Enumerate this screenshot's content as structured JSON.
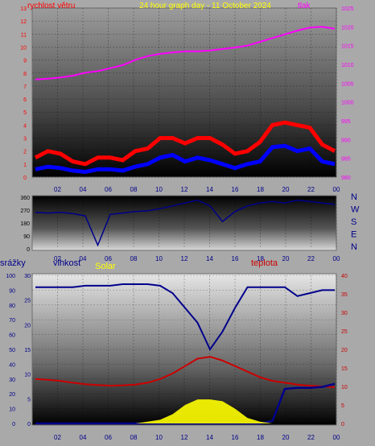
{
  "chart_data": [
    {
      "type": "line",
      "title": "24 hour graph day - 11 October 2024",
      "left_axis_label": "rychlost větru",
      "right_axis_label": "tlak",
      "x_ticks": [
        "02",
        "04",
        "06",
        "08",
        "10",
        "12",
        "14",
        "16",
        "18",
        "20",
        "22",
        "00"
      ],
      "wind_speed_ticks": [
        "0",
        "1",
        "2",
        "3",
        "4",
        "5",
        "6",
        "7",
        "8",
        "9",
        "10",
        "11",
        "12",
        "13"
      ],
      "pressure_ticks": [
        "980",
        "985",
        "990",
        "995",
        "1000",
        "1005",
        "1010",
        "1015",
        "1020",
        "1025"
      ],
      "series": [
        {
          "name": "tlak",
          "axis": "right",
          "color": "#ff00ff",
          "values": [
            1006,
            1006.2,
            1006.5,
            1007,
            1007.8,
            1008.2,
            1009,
            1009.8,
            1011.2,
            1012.2,
            1012.8,
            1013.2,
            1013.5,
            1013.5,
            1013.7,
            1014.1,
            1014.5,
            1015,
            1016,
            1017,
            1018,
            1019,
            1019.8,
            1020,
            1019.5
          ]
        },
        {
          "axis": "left",
          "color": "#ff0000",
          "values": [
            1.5,
            2,
            1.8,
            1.2,
            1,
            1.5,
            1.5,
            1.3,
            2,
            2.2,
            3,
            3,
            2.6,
            3,
            3,
            2.5,
            1.8,
            2,
            2.7,
            4,
            4.2,
            4,
            3.8,
            2.5,
            2
          ]
        },
        {
          "axis": "left",
          "color": "#0000ff",
          "values": [
            0.6,
            0.8,
            0.7,
            0.5,
            0.4,
            0.6,
            0.6,
            0.5,
            0.8,
            1,
            1.5,
            1.7,
            1.2,
            1.5,
            1.3,
            1,
            0.7,
            1,
            1.2,
            2.3,
            2.4,
            2,
            2.2,
            1.2,
            1
          ]
        }
      ]
    },
    {
      "type": "line",
      "y_ticks": [
        "360",
        "270",
        "180",
        "90",
        "0"
      ],
      "x_ticks": [
        "02",
        "04",
        "06",
        "08",
        "10",
        "12",
        "14",
        "16",
        "18",
        "20",
        "22",
        "00"
      ],
      "direction_labels": [
        "N",
        "W",
        "S",
        "E",
        "N"
      ],
      "series": [
        {
          "color": "#00008b",
          "values": [
            255,
            250,
            255,
            245,
            230,
            25,
            240,
            250,
            260,
            265,
            280,
            300,
            320,
            340,
            300,
            190,
            260,
            300,
            320,
            330,
            320,
            340,
            330,
            320,
            310
          ]
        }
      ]
    },
    {
      "type": "line",
      "labels": {
        "rain": "srážky",
        "humidity": "vlhkost",
        "solar": "Solar",
        "temperature": "teplota"
      },
      "x_ticks": [
        "02",
        "04",
        "06",
        "08",
        "10",
        "12",
        "14",
        "16",
        "18",
        "20",
        "22",
        "00"
      ],
      "rain_ticks": [
        "0",
        "10",
        "20",
        "30",
        "40",
        "50",
        "60",
        "70",
        "80",
        "90",
        "100"
      ],
      "humidity_ticks": [
        "0",
        "5",
        "10",
        "15",
        "20",
        "25",
        "30"
      ],
      "temperature_ticks": [
        "0",
        "5",
        "10",
        "15",
        "20",
        "25",
        "30",
        "35",
        "40"
      ],
      "series": [
        {
          "name": "vlhkost",
          "axis": "rain",
          "color": "#00008b",
          "values": [
            92,
            92,
            92,
            92,
            93,
            93,
            93,
            94,
            94,
            94,
            93,
            88,
            78,
            68,
            50,
            62,
            78,
            92,
            92,
            92,
            92,
            86,
            88,
            90,
            90
          ]
        },
        {
          "name": "teplota",
          "axis": "temperature",
          "color": "#cc0000",
          "values": [
            12,
            11.8,
            11.5,
            11,
            10.6,
            10.4,
            10.2,
            10.3,
            10.5,
            11,
            12,
            13.5,
            15.5,
            17.5,
            18,
            17,
            15.5,
            14,
            12.5,
            11.5,
            11,
            10.5,
            10.2,
            10,
            9.8
          ]
        },
        {
          "name": "srážky",
          "axis": "humidity",
          "color": "#00008b",
          "values": [
            0,
            0,
            0,
            0,
            0,
            0,
            0,
            0,
            0,
            0,
            0,
            0,
            0,
            0,
            0,
            0,
            0,
            0,
            0,
            0.5,
            7,
            7.2,
            7.2,
            7.4,
            8
          ]
        },
        {
          "name": "Solar",
          "axis": "temperature",
          "color": "#ffff00",
          "values": [
            0,
            0,
            0,
            0,
            0,
            0,
            0,
            0,
            0,
            0.5,
            1,
            2.5,
            5,
            6.5,
            6.5,
            6,
            4,
            1.5,
            0.5,
            0,
            0,
            0,
            0,
            0,
            0
          ]
        }
      ]
    }
  ]
}
